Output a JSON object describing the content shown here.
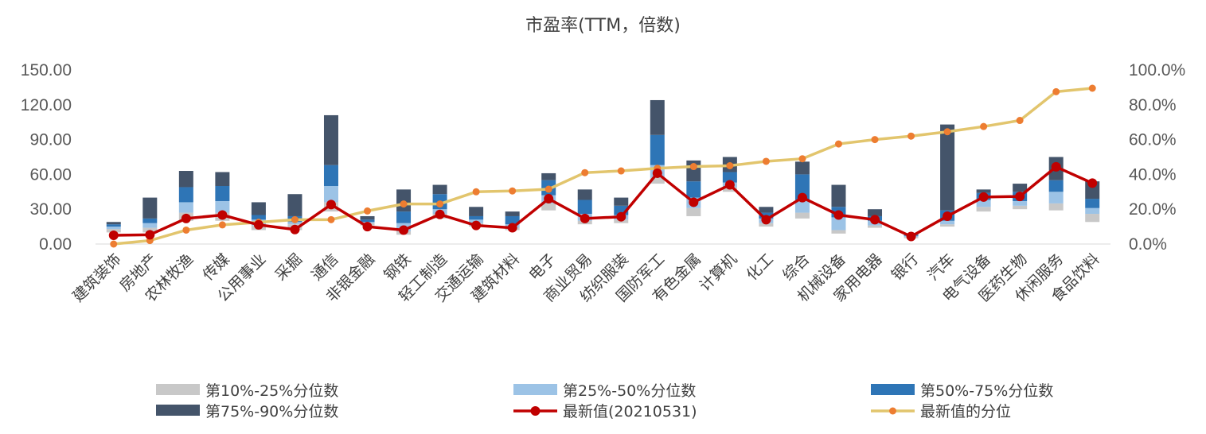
{
  "chart_data": {
    "type": "bar",
    "title": "市盈率(TTM，倍数)",
    "categories": [
      "建筑装饰",
      "房地产",
      "农林牧渔",
      "传媒",
      "公用事业",
      "采掘",
      "通信",
      "非银金融",
      "钢铁",
      "轻工制造",
      "交通运输",
      "建筑材料",
      "电子",
      "商业贸易",
      "纺织服装",
      "国防军工",
      "有色金属",
      "计算机",
      "化工",
      "综合",
      "机械设备",
      "家用电器",
      "银行",
      "汽车",
      "电气设备",
      "医药生物",
      "休闲服务",
      "食品饮料"
    ],
    "y_left": {
      "lim": [
        0,
        150
      ],
      "ticks": [
        "0.00",
        "30.00",
        "60.00",
        "90.00",
        "120.00",
        "150.00"
      ]
    },
    "y_right": {
      "lim": [
        0,
        1
      ],
      "ticks": [
        "0.0%",
        "20.0%",
        "40.0%",
        "60.0%",
        "80.0%",
        "100.0%"
      ]
    },
    "series": [
      {
        "name": "第10%-25%分位数",
        "kind": "stacked-bar",
        "color": "#c8c8c8",
        "values": [
          [
            10,
            13
          ],
          [
            10,
            14
          ],
          [
            20,
            27
          ],
          [
            20,
            27
          ],
          [
            12,
            16
          ],
          [
            12,
            17
          ],
          [
            28,
            36
          ],
          [
            16,
            18
          ],
          [
            8,
            11
          ],
          [
            22,
            26
          ],
          [
            15,
            18
          ],
          [
            12,
            14
          ],
          [
            29,
            35
          ],
          [
            17,
            20
          ],
          [
            18,
            21
          ],
          [
            52,
            57
          ],
          [
            24,
            31
          ],
          [
            45,
            49
          ],
          [
            15,
            18
          ],
          [
            22,
            27
          ],
          [
            9,
            12
          ],
          [
            14,
            16
          ],
          [
            5,
            6
          ],
          [
            15,
            17
          ],
          [
            28,
            32
          ],
          [
            30,
            33
          ],
          [
            29,
            35
          ],
          [
            19,
            26
          ]
        ]
      },
      {
        "name": "第25%-50%分位数",
        "kind": "stacked-bar",
        "color": "#9cc3e6",
        "values": [
          [
            13,
            15
          ],
          [
            14,
            18
          ],
          [
            27,
            36
          ],
          [
            27,
            37
          ],
          [
            16,
            21
          ],
          [
            17,
            19
          ],
          [
            36,
            50
          ],
          [
            18,
            19
          ],
          [
            11,
            18
          ],
          [
            26,
            30
          ],
          [
            18,
            21
          ],
          [
            14,
            17
          ],
          [
            35,
            42
          ],
          [
            20,
            26
          ],
          [
            21,
            25
          ],
          [
            57,
            68
          ],
          [
            31,
            40
          ],
          [
            49,
            53
          ],
          [
            18,
            22
          ],
          [
            27,
            38
          ],
          [
            12,
            23
          ],
          [
            16,
            20
          ],
          [
            6,
            7
          ],
          [
            17,
            20
          ],
          [
            32,
            38
          ],
          [
            33,
            37
          ],
          [
            35,
            45
          ],
          [
            26,
            31
          ]
        ]
      },
      {
        "name": "第50%-75%分位数",
        "kind": "stacked-bar",
        "color": "#2e75b6",
        "values": [
          [
            15,
            17
          ],
          [
            18,
            22
          ],
          [
            36,
            49
          ],
          [
            37,
            50
          ],
          [
            21,
            25
          ],
          [
            19,
            24
          ],
          [
            50,
            68
          ],
          [
            19,
            21
          ],
          [
            18,
            28
          ],
          [
            30,
            43
          ],
          [
            21,
            24
          ],
          [
            17,
            24
          ],
          [
            42,
            55
          ],
          [
            26,
            38
          ],
          [
            25,
            33
          ],
          [
            68,
            94
          ],
          [
            40,
            54
          ],
          [
            53,
            62
          ],
          [
            22,
            27
          ],
          [
            38,
            60
          ],
          [
            23,
            32
          ],
          [
            20,
            24
          ],
          [
            7,
            8
          ],
          [
            20,
            29
          ],
          [
            38,
            44
          ],
          [
            37,
            45
          ],
          [
            45,
            55
          ],
          [
            31,
            39
          ]
        ]
      },
      {
        "name": "第75%-90%分位数",
        "kind": "stacked-bar",
        "color": "#44546a",
        "values": [
          [
            17,
            19
          ],
          [
            22,
            40
          ],
          [
            49,
            63
          ],
          [
            50,
            62
          ],
          [
            25,
            36
          ],
          [
            24,
            43
          ],
          [
            68,
            111
          ],
          [
            21,
            24
          ],
          [
            28,
            47
          ],
          [
            43,
            51
          ],
          [
            24,
            32
          ],
          [
            24,
            28
          ],
          [
            55,
            61
          ],
          [
            38,
            47
          ],
          [
            33,
            40
          ],
          [
            94,
            124
          ],
          [
            54,
            72
          ],
          [
            62,
            75
          ],
          [
            27,
            32
          ],
          [
            60,
            71
          ],
          [
            32,
            51
          ],
          [
            24,
            30
          ],
          [
            8,
            9
          ],
          [
            29,
            103
          ],
          [
            44,
            47
          ],
          [
            45,
            52
          ],
          [
            55,
            75
          ],
          [
            39,
            54
          ]
        ]
      },
      {
        "name": "最新值(20210531)",
        "kind": "line-left",
        "color": "#c00000",
        "values": [
          7.5,
          8,
          22,
          25,
          16.5,
          12.5,
          34,
          15,
          12,
          25.5,
          16,
          14,
          39,
          22,
          23.5,
          61,
          36,
          51,
          21,
          40,
          25,
          21,
          6.5,
          24,
          40.5,
          41,
          66.5,
          52.5
        ]
      },
      {
        "name": "最新值的分位",
        "kind": "line-right",
        "color": "#e2c56d",
        "marker_color": "#ed7d31",
        "values": [
          0.0,
          0.02,
          0.08,
          0.11,
          0.125,
          0.14,
          0.14,
          0.19,
          0.23,
          0.23,
          0.3,
          0.305,
          0.315,
          0.41,
          0.42,
          0.435,
          0.445,
          0.45,
          0.475,
          0.49,
          0.575,
          0.6,
          0.62,
          0.645,
          0.675,
          0.71,
          0.875,
          0.895
        ]
      }
    ],
    "legend_position": "bottom",
    "grid": false
  }
}
